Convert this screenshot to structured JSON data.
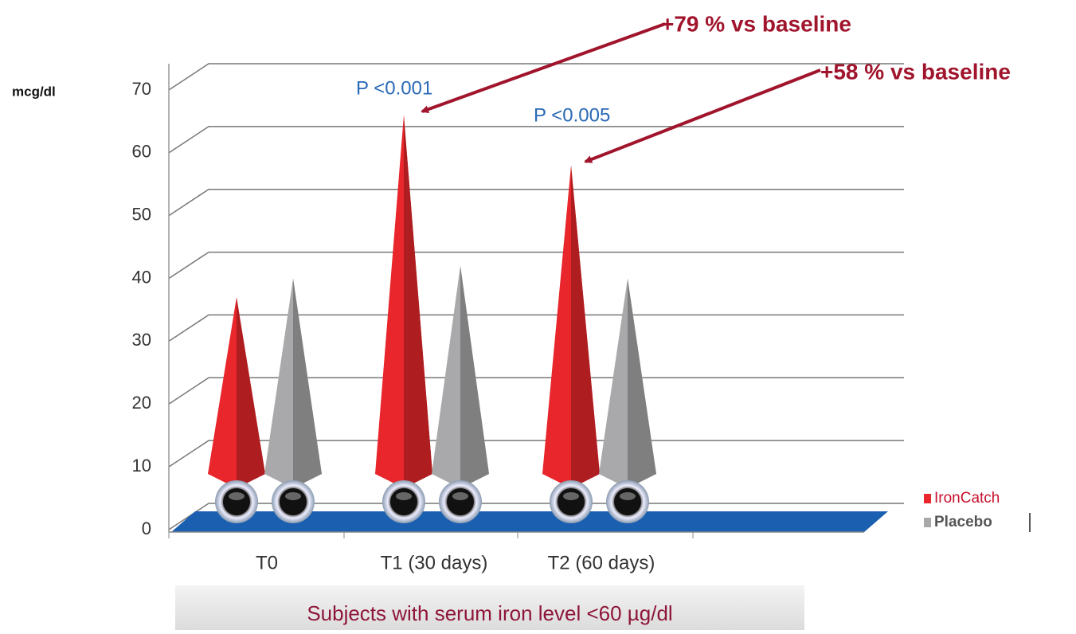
{
  "chart_data": {
    "type": "bar",
    "y_label": "mcg/dl",
    "categories": [
      "T0",
      "T1 (30 days)",
      "T2 (60 days)"
    ],
    "series": [
      {
        "name": "IronCatch",
        "color": "#e8262b",
        "values": [
          37,
          66,
          58
        ]
      },
      {
        "name": "Placebo",
        "color": "#a9a9ab",
        "values": [
          40,
          42,
          40
        ]
      }
    ],
    "ylim": [
      0,
      70
    ],
    "yticks": [
      0,
      10,
      20,
      30,
      40,
      50,
      60,
      70
    ],
    "grid": true,
    "legend": "right",
    "annotations": [
      "P <0.001",
      "P <0.005",
      "+79 % vs baseline",
      "+58 % vs baseline"
    ],
    "caption": "Subjects with serum iron level <60 µg/dl"
  }
}
